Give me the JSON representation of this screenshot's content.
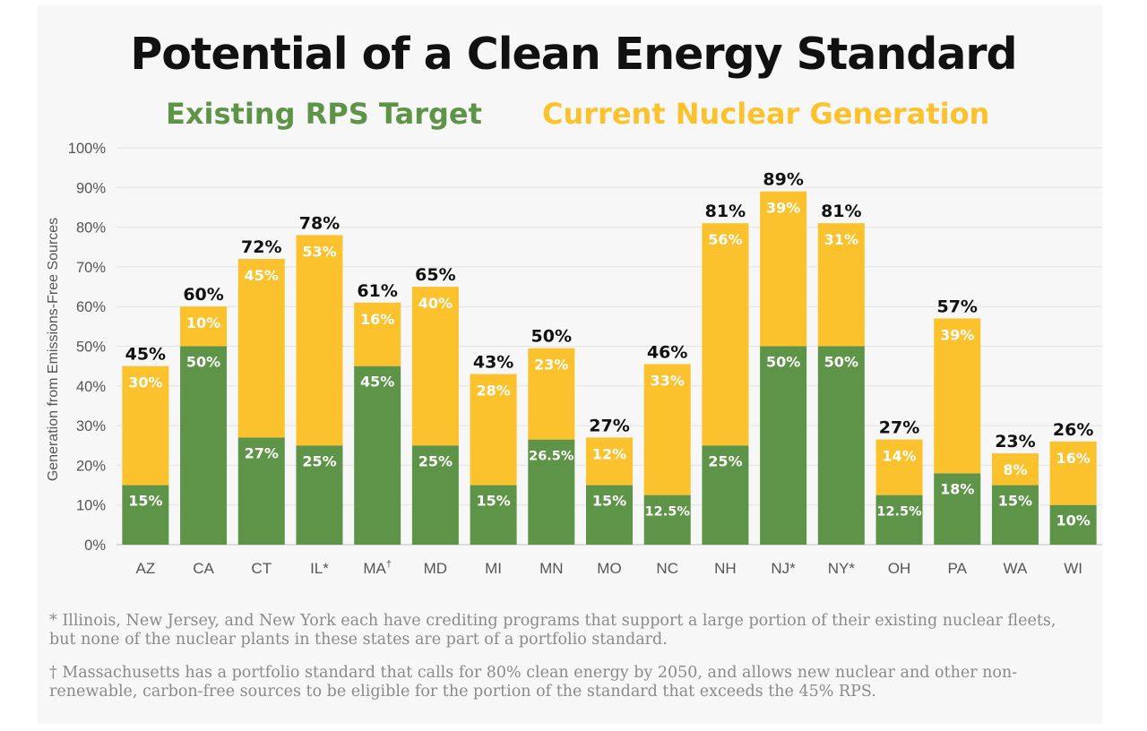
{
  "title": "Potential of a Clean Energy Standard",
  "legend": [
    {
      "label": "Existing RPS Target",
      "color": "#5e9447"
    },
    {
      "label": "Current Nuclear Generation",
      "color": "#fcc22d"
    }
  ],
  "chart_data": {
    "type": "bar",
    "stacked": true,
    "ylabel": "Generation from Emissions-Free Sources",
    "ylim": [
      0,
      100
    ],
    "yticks": [
      "0%",
      "10%",
      "20%",
      "30%",
      "40%",
      "50%",
      "60%",
      "70%",
      "80%",
      "90%",
      "100%"
    ],
    "categories": [
      "AZ",
      "CA",
      "CT",
      "IL*",
      "MA†",
      "MD",
      "MI",
      "MN",
      "MO",
      "NC",
      "NH",
      "NJ*",
      "NY*",
      "OH",
      "PA",
      "WA",
      "WI"
    ],
    "series": [
      {
        "name": "Existing RPS Target",
        "color": "#5e9447",
        "values": [
          15,
          50,
          27,
          25,
          45,
          25,
          15,
          26.5,
          15,
          12.5,
          25,
          50,
          50,
          12.5,
          18,
          15,
          10
        ],
        "labels": [
          "15%",
          "50%",
          "27%",
          "25%",
          "45%",
          "25%",
          "15%",
          "26.5%",
          "15%",
          "12.5%",
          "25%",
          "50%",
          "50%",
          "12.5%",
          "18%",
          "15%",
          "10%"
        ]
      },
      {
        "name": "Current Nuclear Generation",
        "color": "#fcc22d",
        "values": [
          30,
          10,
          45,
          53,
          16,
          40,
          28,
          23,
          12,
          33,
          56,
          39,
          31,
          14,
          39,
          8,
          16
        ],
        "labels": [
          "30%",
          "10%",
          "45%",
          "53%",
          "16%",
          "40%",
          "28%",
          "23%",
          "12%",
          "33%",
          "56%",
          "39%",
          "31%",
          "14%",
          "39%",
          "8%",
          "16%"
        ]
      }
    ],
    "totals": [
      45,
      60,
      72,
      78,
      61,
      65,
      43,
      50,
      27,
      46,
      81,
      89,
      81,
      27,
      57,
      23,
      26
    ],
    "total_labels": [
      "45%",
      "60%",
      "72%",
      "78%",
      "61%",
      "65%",
      "43%",
      "50%",
      "27%",
      "46%",
      "81%",
      "89%",
      "81%",
      "27%",
      "57%",
      "23%",
      "26%"
    ],
    "grid": true
  },
  "footnotes": [
    "* Illinois, New Jersey, and New York each have crediting programs that support a large portion of their existing nuclear fleets, but none of the nuclear plants in these states are part of a portfolio standard.",
    "† Massachusetts has a portfolio standard that calls for 80% clean energy by 2050, and allows new nuclear and other non-renewable, carbon-free sources to be eligible for the portion of the standard that exceeds the 45% RPS."
  ]
}
